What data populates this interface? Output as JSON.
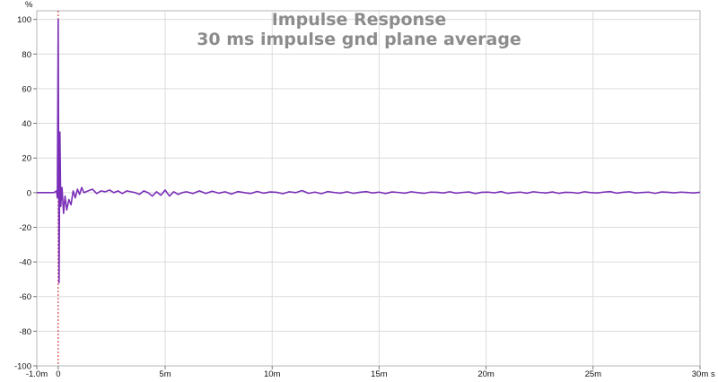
{
  "chart_data": {
    "type": "line",
    "title": "Impulse Response",
    "subtitle": "30 ms impulse gnd plane average",
    "ylabel": "%",
    "xunit": "s",
    "xlim": [
      -0.001,
      0.03
    ],
    "ylim": [
      -100,
      105
    ],
    "grid": true,
    "line_color": "#7a2fb8",
    "marker_color": "#cc1f1f",
    "marker_x": 0,
    "yticks": [
      {
        "v": 100,
        "label": "100"
      },
      {
        "v": 80,
        "label": "80"
      },
      {
        "v": 60,
        "label": "60"
      },
      {
        "v": 40,
        "label": "40"
      },
      {
        "v": 20,
        "label": "20"
      },
      {
        "v": 0,
        "label": "0"
      },
      {
        "v": -20,
        "label": "-20"
      },
      {
        "v": -40,
        "label": "-40"
      },
      {
        "v": -60,
        "label": "-60"
      },
      {
        "v": -80,
        "label": "-80"
      },
      {
        "v": -100,
        "label": "-100"
      }
    ],
    "xticks": [
      {
        "v": -0.001,
        "label": "-1.0m"
      },
      {
        "v": 0,
        "label": "0"
      },
      {
        "v": 0.005,
        "label": "5m"
      },
      {
        "v": 0.01,
        "label": "10m"
      },
      {
        "v": 0.015,
        "label": "15m"
      },
      {
        "v": 0.02,
        "label": "20m"
      },
      {
        "v": 0.025,
        "label": "25m"
      },
      {
        "v": 0.03,
        "label": "30m"
      }
    ],
    "series": [
      {
        "x": [
          -0.001,
          -0.0002,
          -8e-05,
          -4e-05,
          0.0,
          4e-05,
          8e-05,
          0.00012,
          0.00018,
          0.00025,
          0.00032,
          0.0004,
          0.0005,
          0.0006,
          0.0007,
          0.0008,
          0.0009,
          0.001,
          0.0011,
          0.0012,
          0.0014,
          0.0016,
          0.0018,
          0.002,
          0.0022,
          0.0024,
          0.0026,
          0.0028,
          0.003,
          0.0032,
          0.0034,
          0.0036,
          0.0038,
          0.004,
          0.0042,
          0.0044,
          0.0046,
          0.0048,
          0.005,
          0.0052,
          0.0054,
          0.0056,
          0.0058,
          0.006,
          0.0063,
          0.0066,
          0.0069,
          0.0072,
          0.0075,
          0.0078,
          0.0081,
          0.0084,
          0.0087,
          0.009,
          0.0093,
          0.0096,
          0.0099,
          0.0102,
          0.0105,
          0.0108,
          0.0111,
          0.0114,
          0.0117,
          0.012,
          0.0123,
          0.0126,
          0.0129,
          0.0132,
          0.0135,
          0.0138,
          0.0141,
          0.0144,
          0.0147,
          0.015,
          0.0153,
          0.0156,
          0.0159,
          0.0162,
          0.0165,
          0.0168,
          0.0171,
          0.0174,
          0.0177,
          0.018,
          0.0183,
          0.0186,
          0.0189,
          0.0192,
          0.0195,
          0.0198,
          0.0201,
          0.0204,
          0.0207,
          0.021,
          0.0213,
          0.0216,
          0.0219,
          0.0222,
          0.0225,
          0.0228,
          0.0231,
          0.0234,
          0.0237,
          0.024,
          0.0243,
          0.0246,
          0.0249,
          0.0252,
          0.0255,
          0.0258,
          0.0261,
          0.0264,
          0.0267,
          0.027,
          0.0273,
          0.0276,
          0.0279,
          0.0282,
          0.0285,
          0.0288,
          0.0291,
          0.0294,
          0.0297,
          0.03
        ],
        "y": [
          0,
          0,
          1,
          -3,
          100,
          -52,
          35,
          -8,
          3,
          -12,
          -2,
          -10,
          -4,
          -7,
          1,
          -3,
          2,
          -1,
          3,
          0,
          1,
          2,
          -0.5,
          1,
          0.5,
          1.5,
          0,
          1,
          -0.5,
          1,
          0.5,
          0,
          -1,
          1,
          0,
          -2,
          0.5,
          -1.5,
          1.5,
          -2,
          0.5,
          -1,
          0,
          0.5,
          -0.5,
          1,
          -0.5,
          0.8,
          -0.3,
          0.5,
          -0.8,
          0.6,
          0,
          -0.5,
          0.7,
          -0.3,
          0.4,
          0.2,
          -0.6,
          0.5,
          0,
          1.2,
          -0.4,
          0.3,
          -0.6,
          0.6,
          0.1,
          -0.3,
          0.5,
          -0.4,
          0.2,
          0.6,
          -0.2,
          0.3,
          -0.5,
          0.4,
          0.1,
          -0.3,
          0.5,
          0,
          -0.4,
          0.3,
          0.2,
          -0.2,
          0.5,
          -0.3,
          0.1,
          0.4,
          -0.5,
          0.2,
          0.3,
          -0.1,
          0.6,
          -0.4,
          0,
          0.3,
          -0.3,
          0.5,
          0.1,
          -0.2,
          0.4,
          -0.4,
          0.2,
          0.1,
          -0.3,
          0.5,
          0,
          -0.2,
          0.3,
          0.6,
          -0.3,
          0.2,
          0.5,
          -0.2,
          0.1,
          0.3,
          -0.4,
          0.4,
          0.2,
          -0.1,
          0.3,
          0.1,
          -0.2,
          0.2
        ]
      }
    ]
  }
}
